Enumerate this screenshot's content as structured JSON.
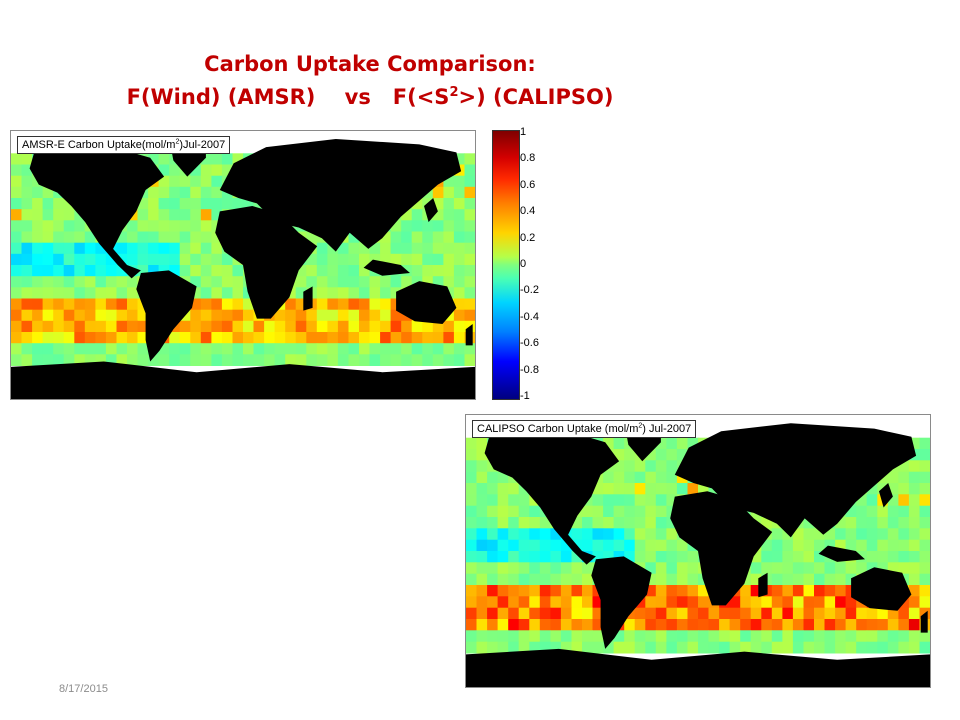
{
  "slide": {
    "title_line1": "Carbon Uptake Comparison:",
    "title_line2_pre": "F(Wind) (AMSR)    vs   F(<S",
    "title_sup": "2",
    "title_line2_post": ">) (CALIPSO)",
    "date": "8/17/2015"
  },
  "maps": [
    {
      "label_pre": "AMSR-E Carbon Uptake(mol/m",
      "label_sup": "2",
      "label_post": ")Jul-2007"
    },
    {
      "label_pre": "CALIPSO Carbon Uptake (mol/m",
      "label_sup": "2",
      "label_post": ") Jul-2007"
    }
  ],
  "colorbar": {
    "ticks": [
      "1",
      "0.8",
      "0.6",
      "0.4",
      "0.2",
      "0",
      "-0.2",
      "-0.4",
      "-0.6",
      "-0.8",
      "-1"
    ],
    "min": -1,
    "max": 1
  },
  "colors": {
    "land": "#000000",
    "ocean_base": "#7fff7f",
    "title": "#c00000"
  }
}
